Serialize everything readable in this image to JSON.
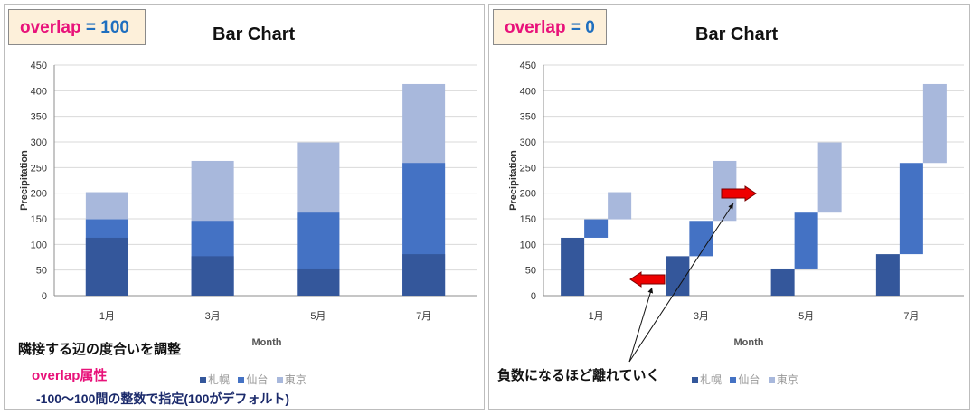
{
  "chart_data": [
    {
      "type": "bar",
      "panel": "left",
      "title": "Bar Chart",
      "badge": {
        "keyword": "overlap",
        "equals": " = ",
        "value": "100"
      },
      "categories": [
        "1月",
        "3月",
        "5月",
        "7月"
      ],
      "overlap": 100,
      "series": [
        {
          "name": "札幌",
          "values": [
            113,
            77,
            53,
            81
          ],
          "color": "#34579b"
        },
        {
          "name": "仙台",
          "values": [
            149,
            146,
            162,
            259
          ],
          "color": "#4472c4"
        },
        {
          "name": "東京",
          "values": [
            202,
            263,
            299,
            413
          ],
          "color": "#a8b8dc"
        }
      ],
      "ylabel": "Precipitation",
      "xlabel": "Month",
      "ylim": [
        0,
        450
      ],
      "yticks": [
        "0",
        "50",
        "100",
        "150",
        "200",
        "250",
        "300",
        "350",
        "400",
        "450"
      ],
      "grid": true,
      "legend": "bottom"
    },
    {
      "type": "bar",
      "panel": "right",
      "title": "Bar Chart",
      "badge": {
        "keyword": "overlap",
        "equals": " = ",
        "value": "0"
      },
      "categories": [
        "1月",
        "3月",
        "5月",
        "7月"
      ],
      "overlap": 0,
      "series": [
        {
          "name": "札幌",
          "values": [
            113,
            77,
            53,
            81
          ],
          "color": "#34579b"
        },
        {
          "name": "仙台",
          "values": [
            149,
            146,
            162,
            259
          ],
          "color": "#4472c4"
        },
        {
          "name": "東京",
          "values": [
            202,
            263,
            299,
            413
          ],
          "color": "#a8b8dc"
        }
      ],
      "ylabel": "Precipitation",
      "xlabel": "Month",
      "ylim": [
        0,
        450
      ],
      "yticks": [
        "0",
        "50",
        "100",
        "150",
        "200",
        "250",
        "300",
        "350",
        "400",
        "450"
      ],
      "grid": true,
      "legend": "bottom"
    }
  ],
  "notes": {
    "adjust": "隣接する辺の度合いを調整",
    "attribute": "overlap属性",
    "range": "-100～100間の整数で指定(100がデフォルト)",
    "negative": "負数になるほど離れていく"
  }
}
